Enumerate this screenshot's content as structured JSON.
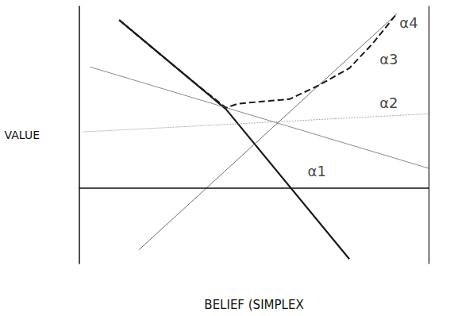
{
  "chart_data": {
    "type": "line",
    "x_label": "BELIEF (SIMPLEX",
    "y_label": "VALUE",
    "xlim": [
      0,
      1
    ],
    "ylim": [
      -5,
      12
    ],
    "xticks": [],
    "yticks": [],
    "tick_labels": false,
    "grid": false,
    "series": [
      {
        "color": "#1a1a1a",
        "line_style": "solid",
        "x": [
          0.114,
          0.42,
          0.773
        ],
        "values": [
          11.1,
          5.2,
          -4.7
        ]
      },
      {
        "color": "#8a8a8a",
        "line_style": "solid",
        "x": [
          0.03,
          1.0
        ],
        "values": [
          8.0,
          1.3
        ]
      },
      {
        "color": "#9a9a9a",
        "line_style": "dotted",
        "x": [
          0.01,
          1.0
        ],
        "values": [
          3.7,
          4.9
        ]
      },
      {
        "color": "#6e6e6e",
        "line_style": "solid",
        "x": [
          0.17,
          0.909
        ],
        "values": [
          -4.1,
          11.5
        ]
      },
      {
        "color": "#1a1a1a",
        "line_style": "dashed",
        "x": [
          0.114,
          0.227,
          0.341,
          0.42,
          0.455,
          0.557,
          0.602,
          0.682,
          0.773,
          0.841,
          0.909
        ],
        "values": [
          11.09,
          8.91,
          6.74,
          5.3,
          5.57,
          5.78,
          5.87,
          6.74,
          7.91,
          9.57,
          11.52
        ]
      }
    ],
    "annotations": [
      {
        "text": "α1",
        "x": 0.68,
        "y": 1.09
      },
      {
        "text": "α2",
        "x": 0.886,
        "y": 5.65
      },
      {
        "text": "α3",
        "x": 0.886,
        "y": 8.5
      },
      {
        "text": "α4",
        "x": 0.943,
        "y": 10.9
      }
    ]
  }
}
